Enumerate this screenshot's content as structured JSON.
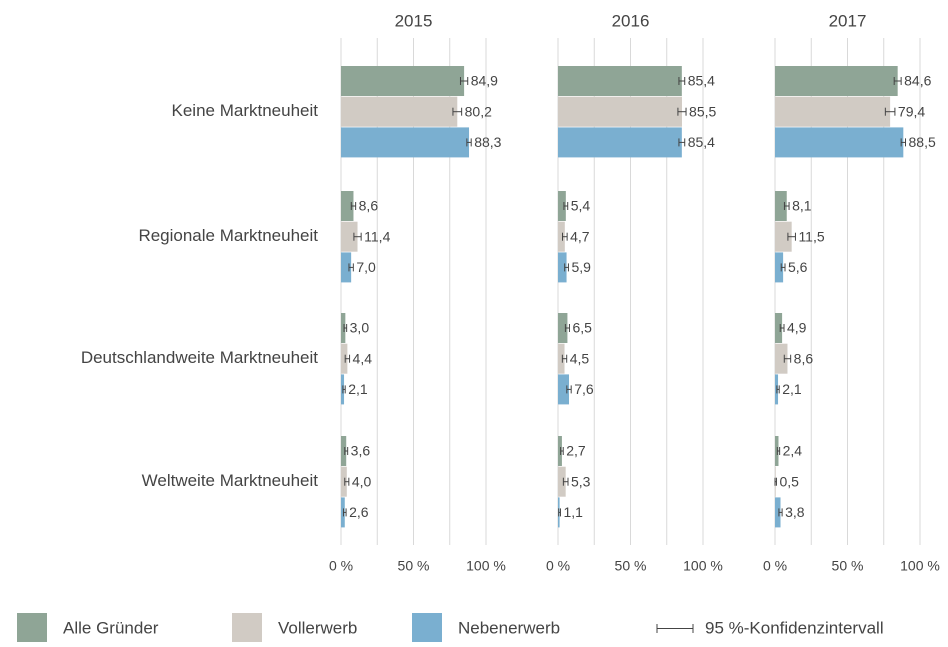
{
  "chart_data": {
    "type": "bar",
    "orientation": "horizontal",
    "categories": [
      "Keine Marktneuheit",
      "Regionale Marktneuheit",
      "Deutschlandweite Marktneuheit",
      "Weltweite Marktneuheit"
    ],
    "legend": [
      {
        "name": "Alle Gründer",
        "color": "#8fa596"
      },
      {
        "name": "Vollerwerb",
        "color": "#d1cbc4"
      },
      {
        "name": "Nebenerwerb",
        "color": "#7aafd0"
      }
    ],
    "error_label": "95 %-Konfidenzintervall",
    "grid": true,
    "panels": [
      {
        "title": "2015",
        "xlim": [
          0,
          100
        ],
        "xticks": [
          {
            "value": 0,
            "label": "0 %"
          },
          {
            "value": 50,
            "label": "50 %"
          },
          {
            "value": 100,
            "label": "100 %"
          }
        ],
        "gridticks": [
          0,
          25,
          50,
          75,
          100
        ],
        "series": [
          {
            "values": [
              84.9,
              8.6,
              3.0,
              3.6
            ],
            "value_labels": [
              "84,9",
              "8,6",
              "3,0",
              "3,6"
            ],
            "errors": [
              2.5,
              1.5,
              0.9,
              1.0
            ]
          },
          {
            "values": [
              80.2,
              11.4,
              4.4,
              4.0
            ],
            "value_labels": [
              "80,2",
              "11,4",
              "4,4",
              "4,0"
            ],
            "errors": [
              3.0,
              2.5,
              1.5,
              1.4
            ]
          },
          {
            "values": [
              88.3,
              7.0,
              2.1,
              2.6
            ],
            "value_labels": [
              "88,3",
              "7,0",
              "2,1",
              "2,6"
            ],
            "errors": [
              1.5,
              1.5,
              0.8,
              0.9
            ]
          }
        ]
      },
      {
        "title": "2016",
        "xlim": [
          0,
          100
        ],
        "xticks": [
          {
            "value": 0,
            "label": "0 %"
          },
          {
            "value": 50,
            "label": "50 %"
          },
          {
            "value": 100,
            "label": "100 %"
          }
        ],
        "gridticks": [
          0,
          25,
          50,
          75,
          100
        ],
        "series": [
          {
            "values": [
              85.4,
              5.4,
              6.5,
              2.7
            ],
            "value_labels": [
              "85,4",
              "5,4",
              "6,5",
              "2,7"
            ],
            "errors": [
              2.0,
              1.3,
              1.4,
              0.9
            ]
          },
          {
            "values": [
              85.5,
              4.7,
              4.5,
              5.3
            ],
            "value_labels": [
              "85,5",
              "4,7",
              "4,5",
              "5,3"
            ],
            "errors": [
              2.8,
              1.6,
              1.5,
              1.6
            ]
          },
          {
            "values": [
              85.4,
              5.9,
              7.6,
              1.1
            ],
            "value_labels": [
              "85,4",
              "5,9",
              "7,6",
              "1,1"
            ],
            "errors": [
              2.0,
              1.3,
              1.5,
              0.6
            ]
          }
        ]
      },
      {
        "title": "2017",
        "xlim": [
          0,
          100
        ],
        "xticks": [
          {
            "value": 0,
            "label": "0 %"
          },
          {
            "value": 50,
            "label": "50 %"
          },
          {
            "value": 100,
            "label": "100 %"
          }
        ],
        "gridticks": [
          0,
          25,
          50,
          75,
          100
        ],
        "series": [
          {
            "values": [
              84.6,
              8.1,
              4.9,
              2.4
            ],
            "value_labels": [
              "84,6",
              "8,1",
              "4,9",
              "2,4"
            ],
            "errors": [
              2.4,
              1.6,
              1.3,
              0.8
            ]
          },
          {
            "values": [
              79.4,
              11.5,
              8.6,
              0.5
            ],
            "value_labels": [
              "79,4",
              "11,5",
              "8,6",
              "0,5"
            ],
            "errors": [
              3.3,
              2.6,
              2.2,
              0.5
            ]
          },
          {
            "values": [
              88.5,
              5.6,
              2.1,
              3.8
            ],
            "value_labels": [
              "88,5",
              "5,6",
              "2,1",
              "3,8"
            ],
            "errors": [
              1.5,
              1.3,
              0.8,
              1.1
            ]
          }
        ]
      }
    ]
  }
}
